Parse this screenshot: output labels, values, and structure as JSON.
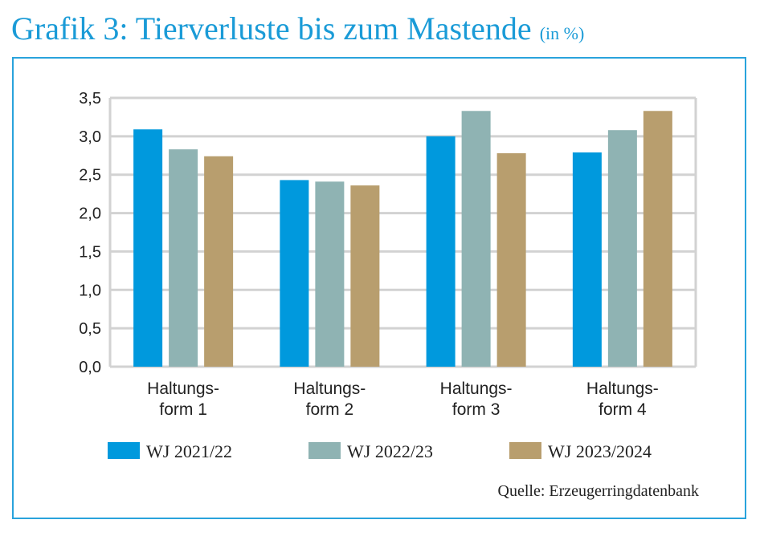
{
  "chart_data": {
    "type": "bar",
    "title": "Grafik 3: Tierverluste bis zum Mastende",
    "title_unit": "(in %)",
    "categories": [
      [
        "Haltungs-",
        "form 1"
      ],
      [
        "Haltungs-",
        "form 2"
      ],
      [
        "Haltungs-",
        "form 3"
      ],
      [
        "Haltungs-",
        "form 4"
      ]
    ],
    "series": [
      {
        "name": "WJ 2021/22",
        "color": "#0099dd",
        "values": [
          3.09,
          2.43,
          3.0,
          2.79
        ]
      },
      {
        "name": "WJ 2022/23",
        "color": "#8fb3b3",
        "values": [
          2.83,
          2.41,
          3.33,
          3.08
        ]
      },
      {
        "name": "WJ 2023/2024",
        "color": "#b89e6e",
        "values": [
          2.74,
          2.36,
          2.78,
          3.33
        ]
      }
    ],
    "ylim": [
      0,
      3.5
    ],
    "yticks": [
      "0,0",
      "0,5",
      "1,0",
      "1,5",
      "2,0",
      "2,5",
      "3,0",
      "3,5"
    ],
    "grid": true,
    "legend_position": "bottom",
    "source": "Quelle: Erzeugerringdatenbank"
  }
}
